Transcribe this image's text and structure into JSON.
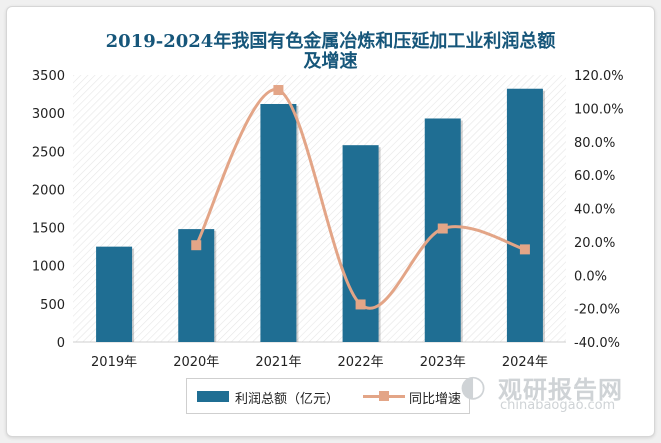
{
  "title_line1": "2019-2024年我国有色金属冶炼和压延加工业利润总额",
  "title_line2": "及增速",
  "colors": {
    "bar": "#1f6e93",
    "line": "#e3a587",
    "title": "#16567a"
  },
  "chart_data": {
    "type": "bar",
    "categories": [
      "2019年",
      "2020年",
      "2021年",
      "2022年",
      "2023年",
      "2024年"
    ],
    "series": [
      {
        "name": "利润总额（亿元）",
        "type": "bar",
        "axis": "left",
        "values": [
          1250,
          1480,
          3120,
          2580,
          2930,
          3320
        ]
      },
      {
        "name": "同比增速",
        "type": "line",
        "axis": "right",
        "values": [
          null,
          18.0,
          111.0,
          -17.5,
          28.0,
          15.5
        ]
      }
    ],
    "y_left": {
      "ylim": [
        0,
        3500
      ],
      "ticks": [
        "0",
        "500",
        "1000",
        "1500",
        "2000",
        "2500",
        "3000",
        "3500"
      ]
    },
    "y_right": {
      "ylim": [
        -40,
        120
      ],
      "ticks": [
        "-40.0%",
        "-20.0%",
        "0.0%",
        "20.0%",
        "40.0%",
        "60.0%",
        "80.0%",
        "100.0%",
        "120.0%"
      ]
    },
    "legend_position": "bottom",
    "grid": false
  },
  "legend": {
    "bar_label": "利润总额（亿元）",
    "line_label": "同比增速"
  },
  "watermark": {
    "logo": "◐",
    "text_cn": "观研报告网",
    "text_en": "chinabaogao.com"
  }
}
